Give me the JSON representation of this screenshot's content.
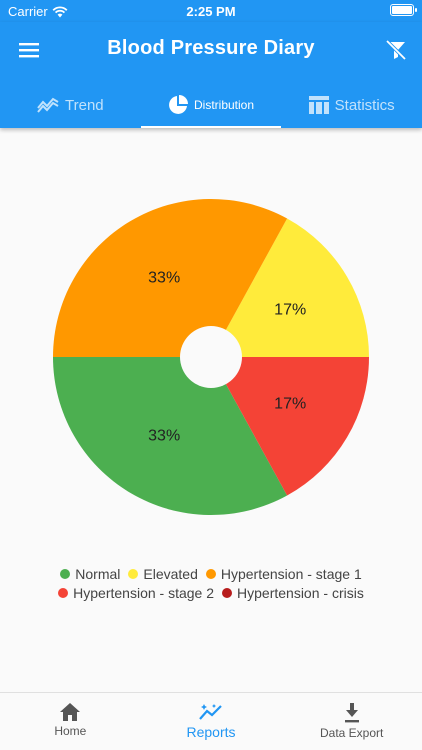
{
  "status": {
    "carrier": "Carrier",
    "time": "2:25 PM"
  },
  "header": {
    "title": "Blood Pressure Diary"
  },
  "tabs": [
    {
      "label": "Trend",
      "icon": "trend-icon"
    },
    {
      "label": "Distribution",
      "icon": "pie-chart-icon"
    },
    {
      "label": "Statistics",
      "icon": "table-icon"
    }
  ],
  "chart_data": {
    "type": "pie",
    "slices": [
      {
        "label": "Elevated",
        "value": 17,
        "display": "17%",
        "color": "#FFEB3B"
      },
      {
        "label": "Hypertension - stage 1",
        "value": 33,
        "display": "33%",
        "color": "#FF9800"
      },
      {
        "label": "Normal",
        "value": 33,
        "display": "33%",
        "color": "#4CAF50"
      },
      {
        "label": "Hypertension - stage 2",
        "value": 17,
        "display": "17%",
        "color": "#F44336"
      }
    ],
    "legend": [
      {
        "label": "Normal",
        "color": "#4CAF50"
      },
      {
        "label": "Elevated",
        "color": "#FFEB3B"
      },
      {
        "label": "Hypertension - stage 1",
        "color": "#FF9800"
      },
      {
        "label": "Hypertension - stage 2",
        "color": "#F44336"
      },
      {
        "label": "Hypertension - crisis",
        "color": "#B71C1C"
      }
    ],
    "legend_position": "bottom",
    "donut_hole": true
  },
  "bottom_nav": [
    {
      "label": "Home",
      "icon": "home-icon"
    },
    {
      "label": "Reports",
      "icon": "reports-icon"
    },
    {
      "label": "Data Export",
      "icon": "download-icon"
    }
  ],
  "colors": {
    "primary": "#2196F3",
    "background": "#FAFAFA"
  }
}
